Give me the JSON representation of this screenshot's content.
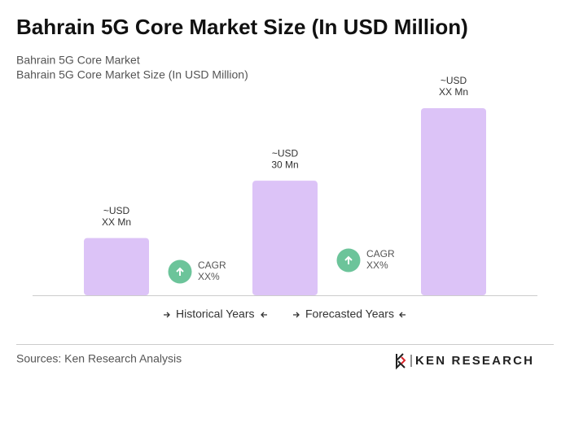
{
  "chart_data": {
    "type": "bar",
    "title": "Bahrain 5G Core Market Size (In USD Million)",
    "subtitle": [
      "Bahrain 5G Core Market",
      "Bahrain 5G Core Market Size (In USD Million)"
    ],
    "categories": [
      null,
      null,
      null
    ],
    "values": [
      15,
      30,
      49
    ],
    "value_labels": [
      [
        "~USD",
        "XX Mn"
      ],
      [
        "~USD",
        "30 Mn"
      ],
      [
        "~USD",
        "XX Mn"
      ]
    ],
    "color": "#dcc3f7",
    "annotations": [
      [
        "CAGR",
        "XX%"
      ],
      [
        "CAGR",
        "XX%"
      ]
    ],
    "annotation_color": "#6cc49a",
    "legend": [
      "Historical Years",
      "Forecasted Years"
    ],
    "source": "Sources: Ken Research Analysis",
    "brand": "KEN RESEARCH"
  }
}
